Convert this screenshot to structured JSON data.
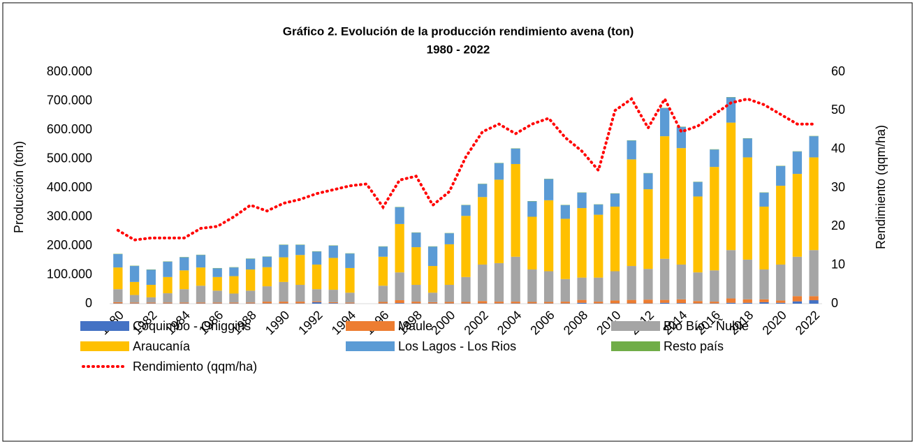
{
  "chart_data": {
    "type": "bar",
    "stacked": true,
    "title": "Gráfico 2. Evolución de la producción rendimiento avena (ton)",
    "subtitle": "1980 - 2022",
    "ylabel": "Producción (ton)",
    "y2label": "Rendimiento (qqm/ha)",
    "categories": [
      "1980",
      null,
      "1982",
      null,
      "1984",
      null,
      "1986",
      null,
      "1988",
      null,
      "1990",
      null,
      "1992",
      null,
      "1994",
      null,
      "1996",
      null,
      "1998",
      null,
      "2000",
      null,
      "2002",
      null,
      "2004",
      null,
      "2006",
      null,
      "2008",
      null,
      "2010",
      null,
      "2012",
      null,
      "2014",
      null,
      "2016",
      null,
      "2018",
      null,
      "2020",
      null,
      "2022"
    ],
    "ylim": [
      0,
      800000
    ],
    "yticks": [
      0,
      {
        "value": 100000,
        "label": "100.000"
      },
      {
        "value": 200000,
        "label": "200.000"
      },
      {
        "value": 300000,
        "label": "300.000"
      },
      {
        "value": 400000,
        "label": "400.000"
      },
      {
        "value": 500000,
        "label": "500.000"
      },
      {
        "value": 600000,
        "label": "600.000"
      },
      {
        "value": 700000,
        "label": "700.000"
      },
      {
        "value": 800000,
        "label": "800.000"
      }
    ],
    "y2lim": [
      0,
      60
    ],
    "y2ticks": [
      0,
      10,
      20,
      30,
      40,
      50,
      60
    ],
    "grid": false,
    "legend": "bottom",
    "series": [
      {
        "name": "Coquimbo - Ohiggins",
        "color": "#4472c4",
        "values": [
          1000,
          1000,
          1000,
          1000,
          1000,
          1000,
          1000,
          1000,
          1000,
          1000,
          1000,
          1000,
          5000,
          2000,
          1000,
          null,
          1000,
          2000,
          1000,
          1000,
          1000,
          1000,
          1000,
          1000,
          1000,
          1000,
          1000,
          1000,
          3000,
          1000,
          1000,
          1000,
          1000,
          3000,
          2000,
          1000,
          1000,
          3000,
          3000,
          5000,
          3000,
          8000,
          12000
        ]
      },
      {
        "name": "Maule",
        "color": "#ed7d31",
        "values": [
          4000,
          3000,
          3000,
          3000,
          3000,
          3000,
          3000,
          3000,
          3000,
          6000,
          6000,
          6000,
          3000,
          3000,
          3000,
          null,
          5000,
          10000,
          6000,
          4000,
          5000,
          5000,
          8000,
          6000,
          6000,
          5000,
          5000,
          6000,
          10000,
          6000,
          10000,
          12000,
          13000,
          10000,
          13000,
          8000,
          6000,
          15000,
          12000,
          10000,
          8000,
          18000,
          14000
        ]
      },
      {
        "name": "Bío Bío - Ñuble",
        "color": "#a5a5a5",
        "values": [
          45000,
          26000,
          18000,
          32000,
          46000,
          58000,
          41000,
          31000,
          41000,
          53000,
          68000,
          58000,
          42000,
          43000,
          34000,
          null,
          56000,
          96000,
          58000,
          33000,
          59000,
          86000,
          126000,
          133000,
          155000,
          112000,
          106000,
          78000,
          77000,
          83000,
          101000,
          117000,
          106000,
          142000,
          120000,
          99000,
          108000,
          167000,
          137000,
          103000,
          124000,
          136000,
          159000
        ]
      },
      {
        "name": "Araucanía",
        "color": "#ffc000",
        "values": [
          75000,
          45000,
          43000,
          56000,
          65000,
          63000,
          47000,
          60000,
          73000,
          66000,
          85000,
          103000,
          85000,
          110000,
          85000,
          null,
          100000,
          167000,
          130000,
          92000,
          140000,
          211000,
          233000,
          288000,
          320000,
          182000,
          245000,
          208000,
          240000,
          217000,
          223000,
          368000,
          275000,
          423000,
          402000,
          262000,
          357000,
          440000,
          353000,
          217000,
          272000,
          286000,
          320000
        ]
      },
      {
        "name": "Los Lagos - Los Rios",
        "color": "#5b9bd5",
        "values": [
          46000,
          55000,
          52000,
          53000,
          45000,
          43000,
          30000,
          30000,
          37000,
          36000,
          43000,
          35000,
          45000,
          42000,
          50000,
          null,
          35000,
          58000,
          50000,
          67000,
          38000,
          37000,
          45000,
          57000,
          53000,
          53000,
          73000,
          47000,
          53000,
          35000,
          45000,
          65000,
          55000,
          97000,
          73000,
          50000,
          60000,
          87000,
          65000,
          48000,
          68000,
          77000,
          73000
        ]
      },
      {
        "name": "Resto país",
        "color": "#70ad47",
        "values": [
          1000,
          1000,
          1000,
          1000,
          1000,
          1000,
          1000,
          1000,
          1000,
          1000,
          1000,
          1000,
          1000,
          1000,
          1000,
          null,
          1000,
          1000,
          1000,
          1000,
          1000,
          1000,
          1000,
          1000,
          1000,
          1000,
          1000,
          1000,
          1000,
          1000,
          1000,
          1000,
          1000,
          1000,
          1000,
          1000,
          1000,
          1000,
          1000,
          1000,
          1000,
          1000,
          1000
        ]
      },
      {
        "name": "Rendimiento (qqm/ha)",
        "color": "#ff0000",
        "type": "line",
        "axis": "y2",
        "style": "dotted",
        "values": [
          19,
          16.5,
          17,
          17,
          17,
          19.5,
          20,
          22.5,
          25.5,
          24,
          26,
          27,
          28.5,
          29.5,
          30.5,
          31,
          25,
          32,
          33,
          25.5,
          29,
          38,
          44.5,
          46.5,
          44,
          46.5,
          48,
          43,
          39.5,
          34.5,
          50,
          53,
          45.5,
          53,
          44.5,
          46,
          49,
          52,
          53,
          51.5,
          49,
          46.5,
          46.5
        ]
      }
    ]
  }
}
